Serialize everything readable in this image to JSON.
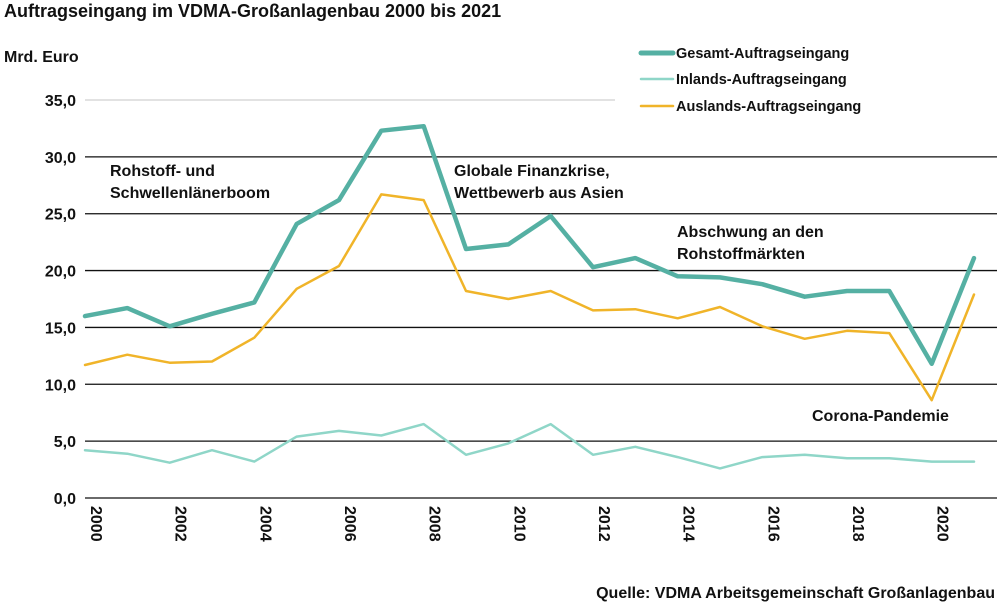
{
  "chart_data": {
    "type": "line",
    "title": "Auftragseingang im VDMA-Großanlagenbau 2000 bis 2021",
    "ylabel": "Mrd. Euro",
    "xlabel": "",
    "ylim": [
      0,
      35
    ],
    "y_ticks": [
      "0,0",
      "5,0",
      "10,0",
      "15,0",
      "20,0",
      "25,0",
      "30,0",
      "35,0"
    ],
    "x_ticks": [
      "2000",
      "2002",
      "2004",
      "2006",
      "2008",
      "2010",
      "2012",
      "2014",
      "2016",
      "2018",
      "2020"
    ],
    "x": [
      2000,
      2001,
      2002,
      2003,
      2004,
      2005,
      2006,
      2007,
      2008,
      2009,
      2010,
      2011,
      2012,
      2013,
      2014,
      2015,
      2016,
      2017,
      2018,
      2019,
      2020,
      2021
    ],
    "grid": true,
    "legend_position": "top-right",
    "series": [
      {
        "name": "Gesamt-Auftragseingang",
        "color": "#55b0a3",
        "values": [
          16.0,
          16.7,
          15.1,
          16.2,
          17.2,
          24.1,
          26.2,
          32.3,
          32.7,
          21.9,
          22.3,
          24.8,
          20.3,
          21.1,
          19.5,
          19.4,
          18.8,
          17.7,
          18.2,
          18.2,
          11.8,
          21.1
        ]
      },
      {
        "name": "Inlands-Auftragseingang",
        "color": "#8fd6c8",
        "values": [
          4.2,
          3.9,
          3.1,
          4.2,
          3.2,
          5.4,
          5.9,
          5.5,
          6.5,
          3.8,
          4.8,
          6.5,
          3.8,
          4.5,
          3.6,
          2.6,
          3.6,
          3.8,
          3.5,
          3.5,
          3.2,
          3.2
        ]
      },
      {
        "name": "Auslands-Auftragseingang",
        "color": "#f0b429",
        "values": [
          11.7,
          12.6,
          11.9,
          12.0,
          14.1,
          18.4,
          20.4,
          26.7,
          26.2,
          18.2,
          17.5,
          18.2,
          16.5,
          16.6,
          15.8,
          16.8,
          15.1,
          14.0,
          14.7,
          14.5,
          8.6,
          17.9
        ]
      }
    ],
    "annotations": [
      {
        "lines": [
          "Rohstoff- und",
          "Schwellenlänerboom"
        ]
      },
      {
        "lines": [
          "Globale Finanzkrise,",
          "Wettbewerb aus Asien"
        ]
      },
      {
        "lines": [
          "Abschwung an den",
          "Rohstoffmärkten"
        ]
      },
      {
        "lines": [
          "Corona-Pandemie"
        ]
      }
    ],
    "source": "Quelle: VDMA Arbeitsgemeinschaft Großanlagenbau"
  }
}
